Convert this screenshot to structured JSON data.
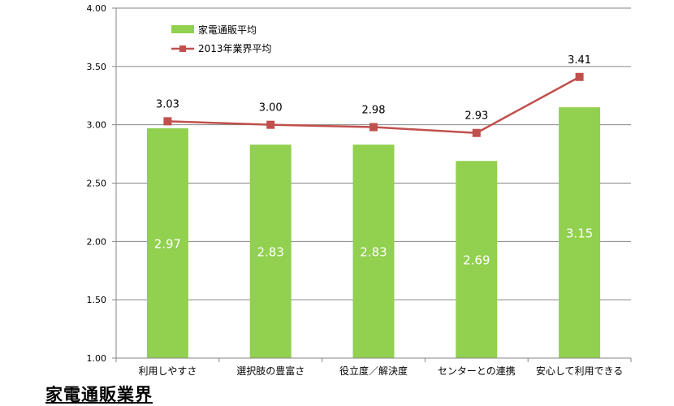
{
  "chart_data": {
    "type": "bar",
    "categories": [
      "利用しやすさ",
      "選択肢の豊富さ",
      "役立度／解決度",
      "センターとの連携",
      "安心して利用できる"
    ],
    "series": [
      {
        "name": "家電通販平均",
        "kind": "bar",
        "color": "#92d050",
        "values": [
          2.97,
          2.83,
          2.83,
          2.69,
          3.15
        ],
        "labels": [
          "2.97",
          "2.83",
          "2.83",
          "2.69",
          "3.15"
        ]
      },
      {
        "name": "2013年業界平均",
        "kind": "line",
        "color": "#c0504d",
        "values": [
          3.03,
          3.0,
          2.98,
          2.93,
          3.41
        ],
        "labels": [
          "3.03",
          "3.00",
          "2.98",
          "2.93",
          "3.41"
        ]
      }
    ],
    "ylim": [
      1.0,
      4.0
    ],
    "yticks": [
      "1.00",
      "1.50",
      "2.00",
      "2.50",
      "3.00",
      "3.50",
      "4.00"
    ],
    "grid": true,
    "legend_position": "top-left"
  },
  "caption": "家電通販業界"
}
